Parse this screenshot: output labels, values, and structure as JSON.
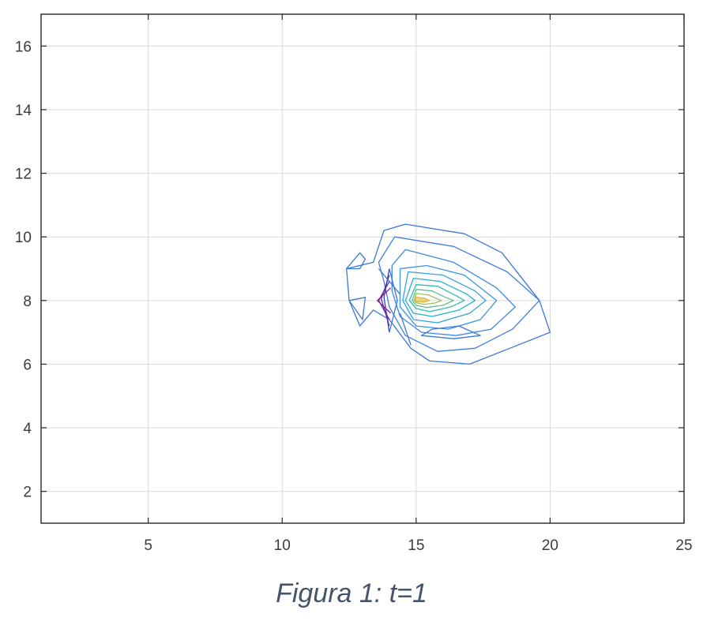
{
  "caption": "Figura 1: t=1",
  "chart_data": {
    "type": "contour",
    "title": "",
    "xlabel": "",
    "ylabel": "",
    "xlim": [
      1,
      25
    ],
    "ylim": [
      1,
      17
    ],
    "xticks": [
      5,
      10,
      15,
      20,
      25
    ],
    "yticks": [
      2,
      4,
      6,
      8,
      10,
      12,
      14,
      16
    ],
    "grid": true,
    "colormap": "parula",
    "peak": {
      "x": 15,
      "y": 8
    },
    "levels": [
      {
        "level": 1,
        "color": "#3a78d8",
        "points": [
          [
            12.4,
            9
          ],
          [
            13.4,
            9.2
          ],
          [
            13.8,
            10.2
          ],
          [
            14.6,
            10.4
          ],
          [
            16.8,
            10.1
          ],
          [
            18.2,
            9.5
          ],
          [
            19.6,
            8
          ],
          [
            20,
            7
          ],
          [
            18.5,
            6.5
          ],
          [
            17,
            6
          ],
          [
            15.5,
            6.1
          ],
          [
            14.8,
            6.5
          ],
          [
            14,
            7.4
          ],
          [
            13.4,
            7.7
          ],
          [
            12.9,
            7.2
          ],
          [
            12.5,
            8
          ]
        ]
      },
      {
        "level": 2,
        "color": "#3e7fe0",
        "points": [
          [
            13.6,
            9.2
          ],
          [
            14.2,
            10
          ],
          [
            16.4,
            9.7
          ],
          [
            18.4,
            8.9
          ],
          [
            19.6,
            8
          ],
          [
            18.6,
            7.1
          ],
          [
            17.2,
            6.5
          ],
          [
            15.8,
            6.4
          ],
          [
            14.6,
            6.9
          ],
          [
            14,
            7.8
          ],
          [
            13.8,
            8.6
          ]
        ]
      },
      {
        "level": 3,
        "color": "#3d88e4",
        "points": [
          [
            14.1,
            9.1
          ],
          [
            14.6,
            9.6
          ],
          [
            16.4,
            9.2
          ],
          [
            18,
            8.4
          ],
          [
            18.7,
            7.8
          ],
          [
            17.8,
            7.1
          ],
          [
            16.5,
            6.9
          ],
          [
            15.2,
            7
          ],
          [
            14.4,
            7.5
          ],
          [
            14.1,
            8.3
          ]
        ]
      },
      {
        "level": 4,
        "color": "#3a93e2",
        "points": [
          [
            14.4,
            9
          ],
          [
            15.4,
            9.1
          ],
          [
            16.8,
            8.8
          ],
          [
            18,
            8
          ],
          [
            17.4,
            7.4
          ],
          [
            16.2,
            7.1
          ],
          [
            15,
            7.2
          ],
          [
            14.4,
            7.8
          ]
        ]
      },
      {
        "level": 5,
        "color": "#2fa2dc",
        "points": [
          [
            14.7,
            8.9
          ],
          [
            16,
            8.8
          ],
          [
            17.2,
            8.3
          ],
          [
            17.6,
            8
          ],
          [
            17,
            7.6
          ],
          [
            15.8,
            7.3
          ],
          [
            14.9,
            7.4
          ],
          [
            14.5,
            8
          ]
        ]
      },
      {
        "level": 6,
        "color": "#22b1cc",
        "points": [
          [
            14.9,
            8.7
          ],
          [
            15.9,
            8.6
          ],
          [
            16.9,
            8.2
          ],
          [
            17.2,
            8
          ],
          [
            16.6,
            7.7
          ],
          [
            15.6,
            7.5
          ],
          [
            14.9,
            7.6
          ],
          [
            14.6,
            8
          ]
        ]
      },
      {
        "level": 7,
        "color": "#30bbb0",
        "points": [
          [
            15,
            8.5
          ],
          [
            15.8,
            8.45
          ],
          [
            16.5,
            8.15
          ],
          [
            16.8,
            8
          ],
          [
            16.3,
            7.8
          ],
          [
            15.5,
            7.65
          ],
          [
            15,
            7.75
          ],
          [
            14.75,
            8
          ]
        ]
      },
      {
        "level": 8,
        "color": "#5cc08e",
        "points": [
          [
            15,
            8.35
          ],
          [
            15.6,
            8.3
          ],
          [
            16.1,
            8.1
          ],
          [
            16.4,
            8
          ],
          [
            16,
            7.85
          ],
          [
            15.4,
            7.78
          ],
          [
            15,
            7.85
          ],
          [
            14.85,
            8
          ]
        ]
      },
      {
        "level": 9,
        "color": "#9cbf5e",
        "points": [
          [
            15,
            8.22
          ],
          [
            15.45,
            8.18
          ],
          [
            15.8,
            8.05
          ],
          [
            15.95,
            8
          ],
          [
            15.7,
            7.92
          ],
          [
            15.3,
            7.88
          ],
          [
            15,
            7.93
          ],
          [
            14.92,
            8
          ]
        ]
      },
      {
        "level": 10,
        "color": "#e2b93a",
        "points": [
          [
            15,
            8.1
          ],
          [
            15.3,
            8.08
          ],
          [
            15.5,
            8
          ],
          [
            15.3,
            7.95
          ],
          [
            15,
            7.97
          ],
          [
            14.96,
            8
          ]
        ]
      }
    ],
    "annotations": [
      {
        "color": "#3a78d8",
        "points": [
          [
            12.4,
            9
          ],
          [
            12.9,
            9.5
          ],
          [
            13.1,
            9.3
          ],
          [
            12.9,
            9
          ]
        ]
      },
      {
        "color": "#3a78d8",
        "points": [
          [
            12.5,
            8
          ],
          [
            13,
            7.4
          ],
          [
            13.1,
            8.1
          ]
        ]
      },
      {
        "color": "#3a78d8",
        "points": [
          [
            15.2,
            6.9
          ],
          [
            16.4,
            6.8
          ],
          [
            17.4,
            6.9
          ],
          [
            16.6,
            7.2
          ],
          [
            15.6,
            7.1
          ]
        ]
      }
    ],
    "lobe_left_lines": [
      {
        "color": "#3b3fc4",
        "points": [
          [
            14,
            9
          ],
          [
            13.8,
            8.1
          ],
          [
            14,
            7
          ]
        ]
      },
      {
        "color": "#5a2bb0",
        "points": [
          [
            14,
            8.8
          ],
          [
            13.7,
            8.05
          ],
          [
            14,
            7.2
          ]
        ]
      },
      {
        "color": "#6a24a0",
        "points": [
          [
            14,
            8.6
          ],
          [
            13.6,
            8
          ],
          [
            14,
            7.4
          ]
        ]
      },
      {
        "color": "#8a1f88",
        "points": [
          [
            14.05,
            8.4
          ],
          [
            13.55,
            8
          ],
          [
            14.05,
            7.6
          ]
        ]
      },
      {
        "color": "#3a78d8",
        "points": [
          [
            14,
            9
          ],
          [
            14.3,
            8
          ],
          [
            14,
            7
          ]
        ]
      },
      {
        "color": "#3a78d8",
        "points": [
          [
            14.4,
            7.6
          ],
          [
            14.8,
            6.6
          ]
        ]
      },
      {
        "color": "#3a78d8",
        "points": [
          [
            13.6,
            9
          ],
          [
            14.4,
            8.2
          ]
        ]
      }
    ]
  }
}
